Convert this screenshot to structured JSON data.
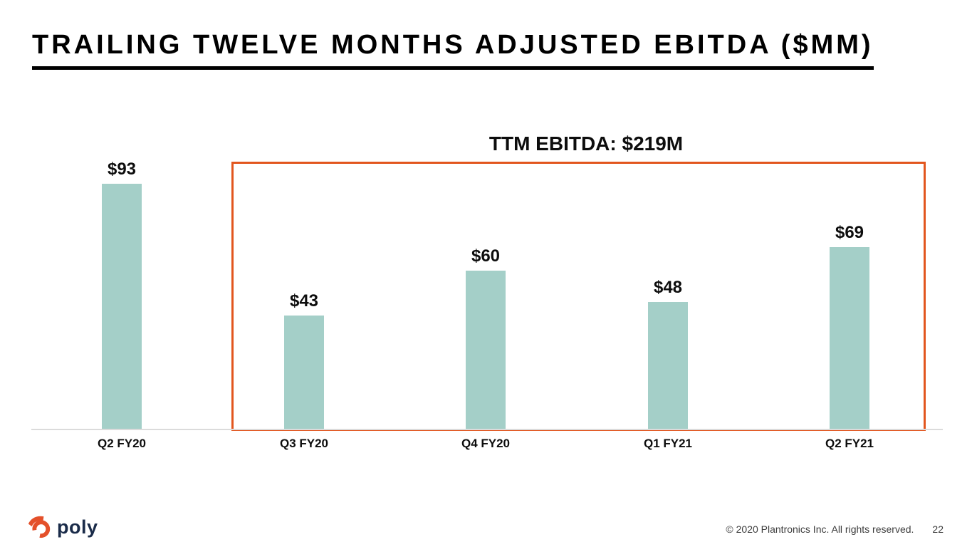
{
  "slide": {
    "title": "TRAILING TWELVE MONTHS ADJUSTED EBITDA ($MM)",
    "copyright": "© 2020 Plantronics Inc. All rights reserved.",
    "page_number": "22",
    "logo_text": "poly"
  },
  "chart_data": {
    "type": "bar",
    "title": "TRAILING TWELVE MONTHS ADJUSTED EBITDA ($MM)",
    "categories": [
      "Q2 FY20",
      "Q3 FY20",
      "Q4 FY20",
      "Q1 FY21",
      "Q2 FY21"
    ],
    "values": [
      93,
      43,
      60,
      48,
      69
    ],
    "value_labels": [
      "$93",
      "$43",
      "$60",
      "$48",
      "$69"
    ],
    "annotation": "TTM EBITDA: $219M",
    "annotation_box_categories": [
      "Q3 FY20",
      "Q4 FY20",
      "Q1 FY21",
      "Q2 FY21"
    ],
    "xlabel": "",
    "ylabel": "",
    "ylim": [
      0,
      100
    ],
    "grid": false,
    "legend": false,
    "bar_color": "#A4CFC8",
    "highlight_box_color": "#E2561E",
    "axis_color": "#DBDBDB"
  },
  "colors": {
    "logo_icon": "#E4502A",
    "logo_text": "#1A2B49",
    "footer_text": "#3C3C3C"
  }
}
